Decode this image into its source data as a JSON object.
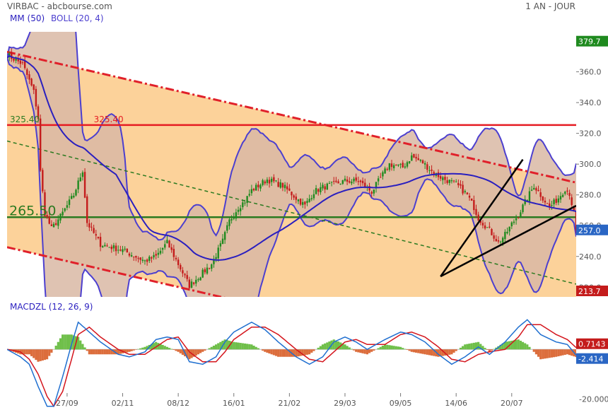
{
  "header": {
    "title": "VIRBAC - abcbourse.com",
    "period": "1 AN - JOUR",
    "indicator_mm": "MM (50)",
    "indicator_boll": "BOLL (20, 4)",
    "macd_label": "MACDZL (12, 26, 9)"
  },
  "colors": {
    "bg_channel": "#fcd29a",
    "boll_fill": "#d9b8a5",
    "boll_outside": "#d7d8c3",
    "boll_line": "#4c3fcf",
    "ma_line": "#2a1fbf",
    "channel_red": "#e0202a",
    "horizontal_red": "#e51c23",
    "support_green": "#2b7a20",
    "candle_up": "#1f8a1f",
    "candle_down": "#c41c1c",
    "macd_line": "#1f6fd0",
    "signal_line": "#d4141c",
    "hist_up": "#6fbf4a",
    "hist_down": "#dc6d3c"
  },
  "chart_data": {
    "type": "candlestick",
    "price_axis": {
      "ylim": [
        213.7,
        386
      ],
      "ticks": [
        "360.0",
        "340.0",
        "320.0",
        "300.0",
        "280.0",
        "260.0",
        "240.0",
        "220.0"
      ],
      "tick_values": [
        360,
        340,
        320,
        300,
        280,
        260,
        240,
        220
      ]
    },
    "x_ticks": [
      "27/09",
      "02/11",
      "08/12",
      "16/01",
      "21/02",
      "29/03",
      "09/05",
      "14/06",
      "20/07"
    ],
    "x_tick_positions": [
      15,
      40,
      65,
      90,
      115,
      140,
      165,
      190,
      215
    ],
    "x_range": [
      -12,
      244
    ],
    "price_badges": {
      "top": {
        "label": "379.7",
        "value": 379.7,
        "color": "#1f8a1f"
      },
      "last": {
        "label": "257.0",
        "value": 257.0,
        "color": "#2a66c4"
      },
      "bottom": {
        "label": "213.7",
        "value": 213.7,
        "color": "#c41c1c"
      }
    },
    "levels": {
      "resistance": {
        "value": 325.4,
        "label_left": "325.40",
        "label_right": "325.40"
      },
      "support": {
        "value": 265.5,
        "label": "265.50"
      }
    },
    "channel_upper": [
      [
        -12,
        373
      ],
      [
        244,
        288
      ]
    ],
    "channel_lower": [
      [
        -12,
        246
      ],
      [
        244,
        160
      ]
    ],
    "channel_mid": [
      [
        -12,
        315
      ],
      [
        244,
        222
      ]
    ],
    "wedge_lines": [
      [
        [
          183,
          227
        ],
        [
          220,
          303
        ]
      ],
      [
        [
          183,
          227
        ],
        [
          244,
          273
        ]
      ]
    ],
    "close_keypoints": [
      [
        -12,
        371
      ],
      [
        -5,
        365
      ],
      [
        0,
        347
      ],
      [
        2,
        330
      ],
      [
        3,
        295
      ],
      [
        5,
        268
      ],
      [
        8,
        258
      ],
      [
        12,
        266
      ],
      [
        18,
        280
      ],
      [
        22,
        296
      ],
      [
        24,
        262
      ],
      [
        30,
        248
      ],
      [
        40,
        244
      ],
      [
        50,
        237
      ],
      [
        55,
        240
      ],
      [
        60,
        249
      ],
      [
        65,
        235
      ],
      [
        70,
        221
      ],
      [
        75,
        228
      ],
      [
        80,
        235
      ],
      [
        85,
        250
      ],
      [
        88,
        263
      ],
      [
        92,
        272
      ],
      [
        95,
        276
      ],
      [
        98,
        283
      ],
      [
        105,
        290
      ],
      [
        112,
        286
      ],
      [
        118,
        278
      ],
      [
        122,
        273
      ],
      [
        126,
        282
      ],
      [
        130,
        285
      ],
      [
        140,
        289
      ],
      [
        146,
        289
      ],
      [
        152,
        282
      ],
      [
        160,
        300
      ],
      [
        166,
        298
      ],
      [
        170,
        305
      ],
      [
        175,
        301
      ],
      [
        180,
        294
      ],
      [
        185,
        290
      ],
      [
        190,
        287
      ],
      [
        195,
        280
      ],
      [
        198,
        272
      ],
      [
        200,
        265
      ],
      [
        205,
        257
      ],
      [
        209,
        249
      ],
      [
        212,
        254
      ],
      [
        215,
        261
      ],
      [
        218,
        267
      ],
      [
        222,
        278
      ],
      [
        225,
        286
      ],
      [
        228,
        280
      ],
      [
        232,
        272
      ],
      [
        236,
        278
      ],
      [
        239,
        284
      ],
      [
        241,
        281
      ],
      [
        243,
        268
      ],
      [
        244,
        257
      ]
    ],
    "macd": {
      "ylim": [
        -24.5,
        15.5
      ],
      "tick_values": [
        -20
      ],
      "tick_labels": [
        "-20.000"
      ],
      "zero": 0,
      "last_signal": {
        "label": "0.7143",
        "value": 0.7143,
        "color": "#c41c1c"
      },
      "last_macd": {
        "label": "-2.414",
        "value": -2.414,
        "color": "#2a66c4"
      },
      "macd_keypoints": [
        [
          -12,
          0
        ],
        [
          -6,
          -3
        ],
        [
          -2,
          -6
        ],
        [
          2,
          -15
        ],
        [
          6,
          -23
        ],
        [
          9,
          -23
        ],
        [
          13,
          -11
        ],
        [
          17,
          2
        ],
        [
          20,
          11
        ],
        [
          25,
          7
        ],
        [
          30,
          3
        ],
        [
          38,
          -2
        ],
        [
          43,
          -3
        ],
        [
          50,
          -1
        ],
        [
          55,
          4
        ],
        [
          60,
          5
        ],
        [
          65,
          4
        ],
        [
          70,
          -5
        ],
        [
          76,
          -6
        ],
        [
          82,
          -3
        ],
        [
          86,
          3
        ],
        [
          90,
          7
        ],
        [
          98,
          11
        ],
        [
          104,
          8
        ],
        [
          110,
          3
        ],
        [
          118,
          -3
        ],
        [
          124,
          -6
        ],
        [
          130,
          -3
        ],
        [
          135,
          3
        ],
        [
          140,
          5
        ],
        [
          145,
          3
        ],
        [
          150,
          0
        ],
        [
          158,
          4
        ],
        [
          165,
          7
        ],
        [
          170,
          6
        ],
        [
          176,
          3
        ],
        [
          182,
          -2
        ],
        [
          188,
          -6
        ],
        [
          194,
          -3
        ],
        [
          200,
          1
        ],
        [
          205,
          -2
        ],
        [
          212,
          3
        ],
        [
          218,
          9
        ],
        [
          222,
          12
        ],
        [
          228,
          6
        ],
        [
          235,
          3
        ],
        [
          240,
          2
        ],
        [
          244,
          -2.4
        ]
      ],
      "signal_keypoints": [
        [
          -12,
          0
        ],
        [
          -6,
          -1
        ],
        [
          -2,
          -4
        ],
        [
          2,
          -10
        ],
        [
          6,
          -19
        ],
        [
          9,
          -23
        ],
        [
          13,
          -17
        ],
        [
          17,
          -4
        ],
        [
          20,
          6
        ],
        [
          25,
          9
        ],
        [
          30,
          5
        ],
        [
          38,
          0
        ],
        [
          43,
          -2
        ],
        [
          50,
          -2
        ],
        [
          55,
          1
        ],
        [
          60,
          4
        ],
        [
          65,
          5
        ],
        [
          70,
          -1
        ],
        [
          76,
          -5
        ],
        [
          82,
          -5
        ],
        [
          86,
          -1
        ],
        [
          90,
          4
        ],
        [
          98,
          9
        ],
        [
          104,
          9
        ],
        [
          110,
          6
        ],
        [
          118,
          0
        ],
        [
          124,
          -4
        ],
        [
          130,
          -5
        ],
        [
          135,
          -1
        ],
        [
          140,
          3
        ],
        [
          145,
          4
        ],
        [
          150,
          2
        ],
        [
          158,
          2
        ],
        [
          165,
          6
        ],
        [
          170,
          7
        ],
        [
          176,
          5
        ],
        [
          182,
          1
        ],
        [
          188,
          -4
        ],
        [
          194,
          -5
        ],
        [
          200,
          -2
        ],
        [
          205,
          -1
        ],
        [
          212,
          0
        ],
        [
          218,
          5
        ],
        [
          222,
          10
        ],
        [
          228,
          10
        ],
        [
          235,
          6
        ],
        [
          240,
          4
        ],
        [
          244,
          0.71
        ]
      ]
    }
  }
}
